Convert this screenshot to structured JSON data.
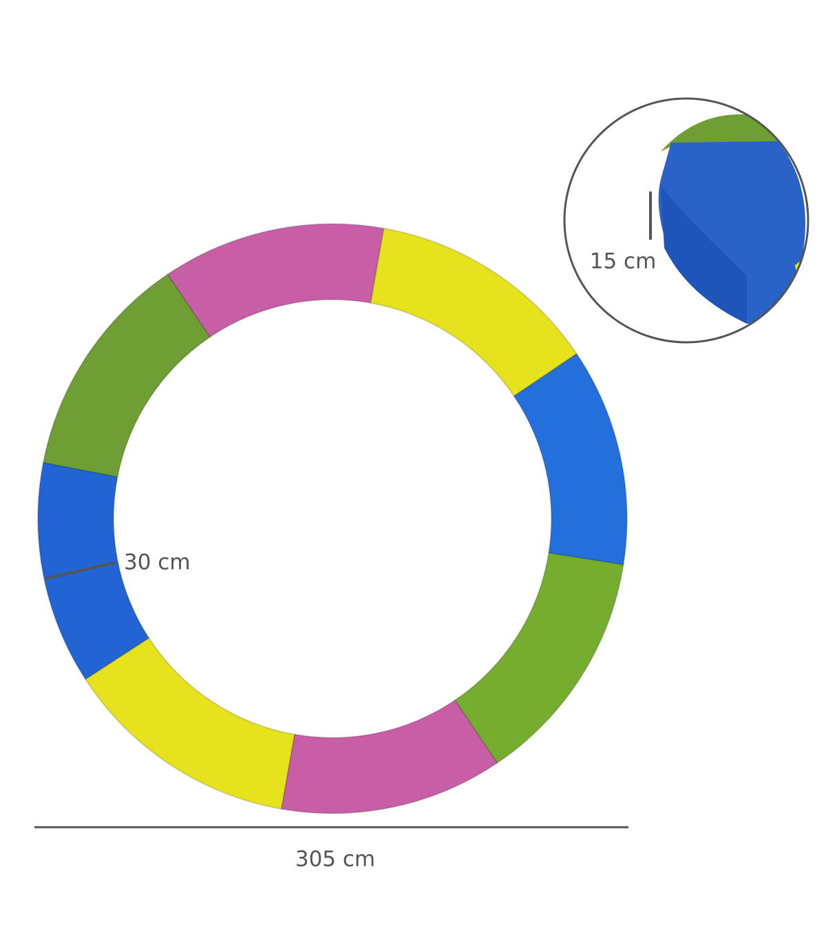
{
  "labels": {
    "pad_width": "30 cm",
    "pad_thickness": "15 cm",
    "diameter": "305 cm"
  }
}
